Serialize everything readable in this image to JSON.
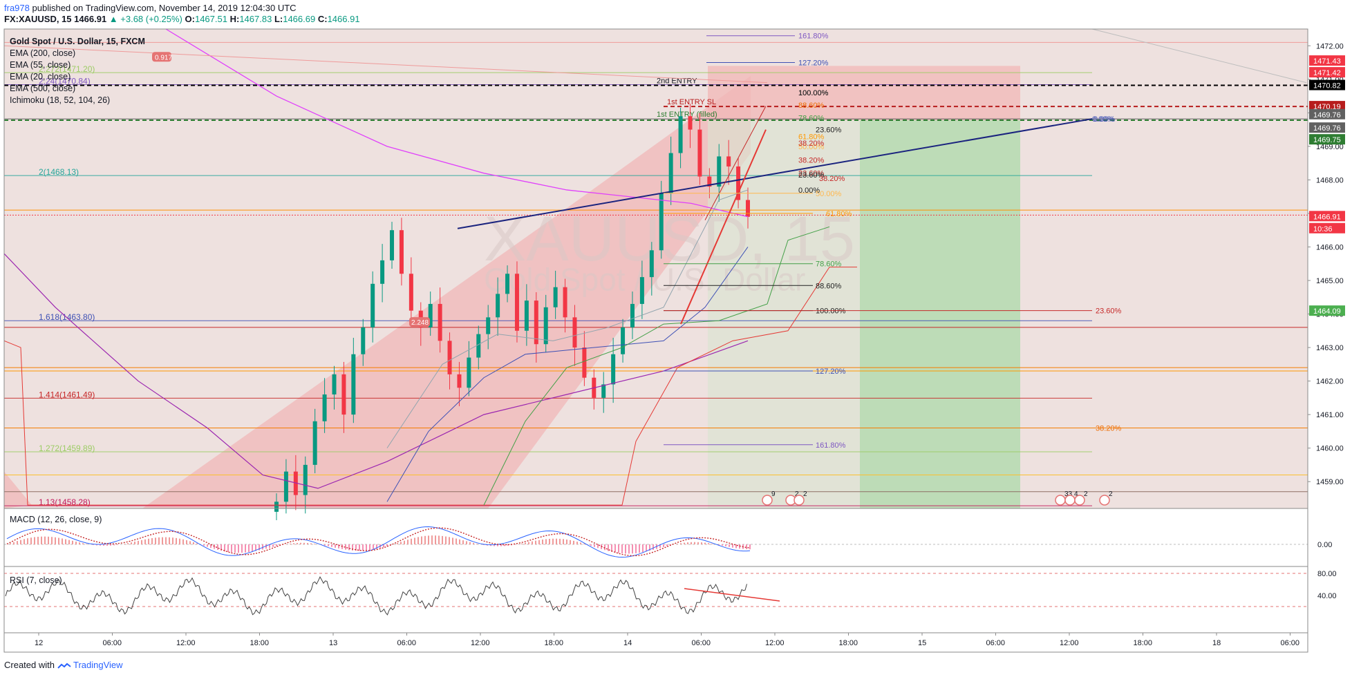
{
  "header": {
    "user": "fra978",
    "published": "published on TradingView.com, November 14, 2019 12:04:30 UTC",
    "symbol": "FX:XAUUSD, 15",
    "last": "1466.91",
    "change": "▲ +3.68 (+0.25%)",
    "o_label": "O:",
    "o": "1467.51",
    "h_label": "H:",
    "h": "1467.83",
    "l_label": "L:",
    "l": "1466.69",
    "c_label": "C:",
    "c": "1466.91"
  },
  "legend": {
    "title": "Gold Spot / U.S. Dollar, 15, FXCM",
    "items": [
      "EMA (200, close)",
      "EMA (55, close)",
      "EMA (20, close)",
      "EMA (500, close)",
      "Ichimoku (18, 52, 104, 26)"
    ]
  },
  "watermark": {
    "symbol": "XAUUSD, 15",
    "name": "Gold Spot / U.S. Dollar"
  },
  "panes": {
    "macd": "MACD (12, 26, close, 9)",
    "rsi": "RSI (7, close)"
  },
  "footer": {
    "created": "Created with",
    "brand": "TradingView"
  },
  "colors": {
    "up": "#089981",
    "down": "#f23645",
    "accent": "#2962ff",
    "pink_zone": "#f7c6c6",
    "green_zone": "#b7dcb2"
  },
  "chart_data": {
    "type": "candlestick",
    "instrument": "XAUUSD",
    "interval": "15",
    "price_axis": {
      "min": 1458.2,
      "max": 1472.5,
      "ticks": [
        1459.0,
        1460.0,
        1461.0,
        1462.0,
        1463.0,
        1464.0,
        1465.0,
        1466.0,
        1467.0,
        1468.0,
        1469.0,
        1470.0,
        1471.0,
        1472.0
      ]
    },
    "time_axis": {
      "ticks": [
        "12",
        "06:00",
        "12:00",
        "18:00",
        "13",
        "06:00",
        "12:00",
        "18:00",
        "14",
        "06:00",
        "12:00",
        "18:00",
        "15",
        "06:00",
        "12:00",
        "18:00",
        "18",
        "06:00"
      ]
    },
    "price_labels": [
      {
        "value": "1471.43",
        "color": "#f23645"
      },
      {
        "value": "1471.42",
        "color": "#f23645"
      },
      {
        "value": "1470.82",
        "color": "#000000"
      },
      {
        "value": "1470.19",
        "color": "#b71c1c"
      },
      {
        "value": "1469.76",
        "color": "#616161"
      },
      {
        "value": "1469.76",
        "color": "#616161"
      },
      {
        "value": "1469.75",
        "color": "#2e7d32"
      },
      {
        "value": "1466.91",
        "color": "#f23645"
      },
      {
        "value": "10:36",
        "color": "#f23645"
      },
      {
        "value": "1464.09",
        "color": "#4caf50"
      }
    ],
    "ohlc_last": {
      "open": 1467.51,
      "high": 1467.83,
      "low": 1466.69,
      "close": 1466.91
    },
    "close_path": [
      1458.4,
      1459.3,
      1458.6,
      1459.5,
      1460.8,
      1461.6,
      1462.2,
      1461.0,
      1462.8,
      1463.6,
      1464.9,
      1465.6,
      1466.5,
      1465.2,
      1464.1,
      1463.6,
      1464.3,
      1463.2,
      1462.2,
      1461.8,
      1462.7,
      1463.4,
      1463.9,
      1464.6,
      1465.2,
      1463.5,
      1464.4,
      1463.1,
      1464.2,
      1464.8,
      1463.9,
      1463.0,
      1462.1,
      1461.5,
      1461.9,
      1462.8,
      1463.6,
      1464.3,
      1465.1,
      1465.9,
      1467.6,
      1468.8,
      1469.9,
      1469.5,
      1468.1,
      1467.8,
      1468.7,
      1468.4,
      1467.4,
      1466.9
    ],
    "ema_pink_label": "0.917",
    "fib_extension_labels": [
      {
        "label": "2.272(1471.20)",
        "price": 1471.2
      },
      {
        "label": "2.24(1470.84)",
        "price": 1470.84
      },
      {
        "label": "2(1468.13)",
        "price": 1468.13
      },
      {
        "label": "1.618(1463.80)",
        "price": 1463.8
      },
      {
        "label": "1.414(1461.49)",
        "price": 1461.49
      },
      {
        "label": "1.272(1459.89)",
        "price": 1459.89
      },
      {
        "label": "1.13(1458.28)",
        "price": 1458.28
      }
    ],
    "channel_label": "2.248",
    "entries": [
      "2nd ENTRY",
      "1st ENTRY SL",
      "1st ENTRY (filled)"
    ],
    "fib_upper": [
      "161.80%",
      "127.20%",
      "100.00%",
      "88.60%",
      "78.60%",
      "61.80%",
      "50.00%",
      "38.20%",
      "23.60%",
      "0.00%"
    ],
    "fib_mid": [
      "100.00%",
      "23.60%",
      "38.20%",
      "23.60%",
      "38.20%",
      "0.00%",
      "50.00%",
      "61.80%",
      "78.60%",
      "88.60%",
      "100.00%",
      "127.20%",
      "161.80%"
    ],
    "fib_right": [
      "0.00%",
      "23.60%",
      "38.20%"
    ],
    "event_counts": [
      "9",
      "2",
      "2",
      "33",
      "4",
      "2",
      "2"
    ],
    "macd": {
      "zero_label": "0.00"
    },
    "rsi": {
      "upper": "80.00",
      "lower": "40.00"
    }
  }
}
